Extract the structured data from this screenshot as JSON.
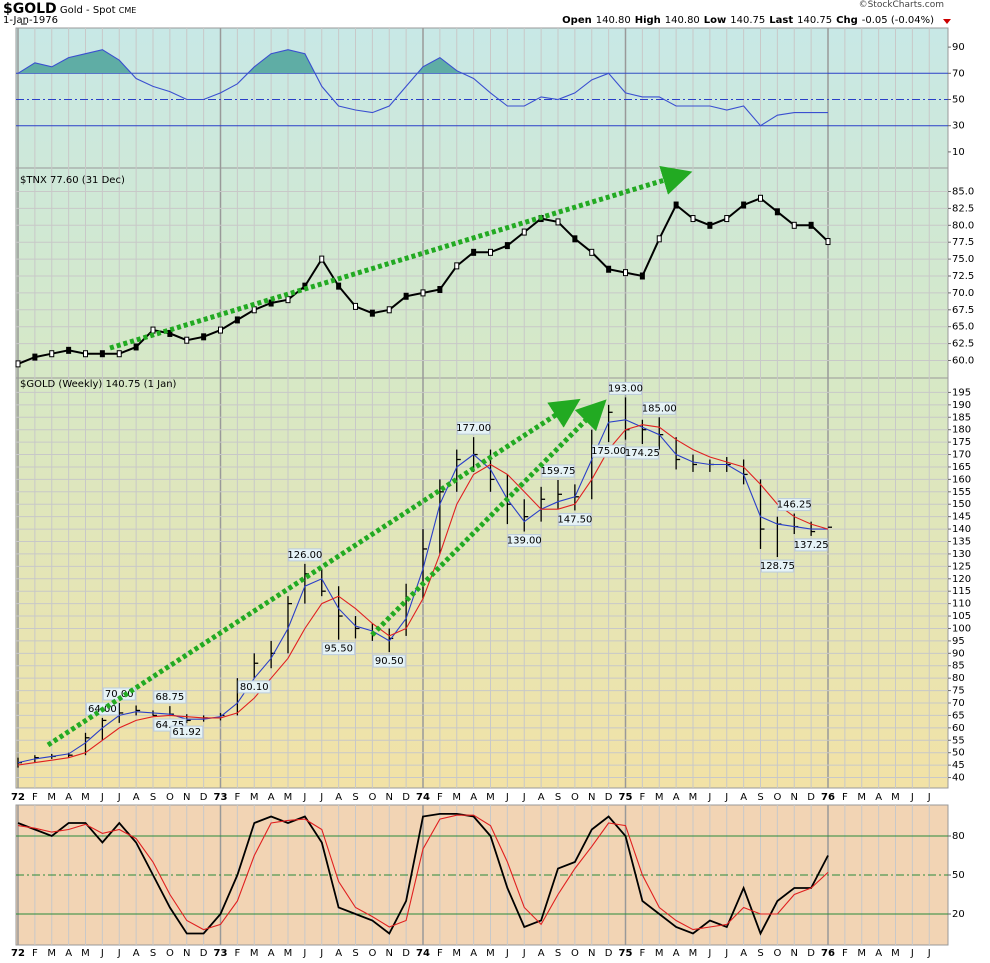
{
  "header": {
    "symbol": "$GOLD",
    "name": "Gold - Spot",
    "exchange": "CME",
    "date": "1-Jan-1976",
    "copyright": "©StockCharts.com",
    "quote": [
      {
        "label": "Open",
        "value": "140.80"
      },
      {
        "label": "High",
        "value": "140.80"
      },
      {
        "label": "Low",
        "value": "140.75"
      },
      {
        "label": "Last",
        "value": "140.75"
      },
      {
        "label": "Chg",
        "value": "-0.05 (-0.04%)"
      }
    ]
  },
  "chart_data": [
    {
      "type": "line",
      "ylim": [
        0,
        100
      ],
      "yticks": [
        10,
        30,
        50,
        70,
        90
      ],
      "reference_lines": [
        70,
        50,
        30
      ],
      "fill_color": "#5fada5",
      "series": [
        {
          "color": "#3a4fd0",
          "values": [
            70,
            78,
            75,
            82,
            85,
            88,
            80,
            66,
            60,
            56,
            50,
            50,
            55,
            62,
            75,
            85,
            88,
            85,
            60,
            45,
            42,
            40,
            45,
            60,
            75,
            82,
            72,
            66,
            55,
            45,
            45,
            52,
            50,
            55,
            65,
            70,
            55,
            52,
            52,
            45,
            45,
            45,
            42,
            45,
            30,
            38,
            40,
            40,
            40,
            null,
            null,
            null,
            null,
            null,
            null
          ]
        }
      ]
    },
    {
      "type": "line",
      "title": "$TNX 77.60 (31 Dec)",
      "ylim": [
        58,
        87
      ],
      "yticks": [
        {
          "value": 60,
          "label": "60.0"
        },
        {
          "value": 62.5,
          "label": "62.5"
        },
        {
          "value": 65,
          "label": "65.0"
        },
        {
          "value": 67.5,
          "label": "67.5"
        },
        {
          "value": 70,
          "label": "70.0"
        },
        {
          "value": 72.5,
          "label": "72.5"
        },
        {
          "value": 75,
          "label": "75.0"
        },
        {
          "value": 77.5,
          "label": "77.5"
        },
        {
          "value": 80,
          "label": "80.0"
        },
        {
          "value": 82.5,
          "label": "82.5"
        },
        {
          "value": 85,
          "label": "85.0"
        }
      ],
      "grid": true,
      "series": [
        {
          "color": "#000000",
          "values": [
            59.5,
            60.5,
            61,
            61.5,
            61,
            61,
            61,
            62,
            64.5,
            64,
            63,
            63.5,
            64.5,
            66,
            67.5,
            68.5,
            69,
            71,
            75,
            71,
            68,
            67,
            67.5,
            69.5,
            70,
            70.5,
            74,
            76,
            76,
            77,
            79,
            81,
            80.5,
            78,
            76,
            73.5,
            73,
            72.5,
            78,
            83,
            81,
            80,
            81,
            83,
            84,
            82,
            80,
            80,
            77.6,
            null,
            null,
            null,
            null,
            null,
            null
          ]
        }
      ]
    },
    {
      "type": "ohlc",
      "title": "$GOLD (Weekly) 140.75 (1 Jan)",
      "ylim": [
        37,
        200
      ],
      "yticks": [
        40,
        45,
        50,
        55,
        60,
        65,
        70,
        75,
        80,
        85,
        90,
        95,
        100,
        105,
        110,
        115,
        120,
        125,
        130,
        135,
        140,
        145,
        150,
        155,
        160,
        165,
        170,
        175,
        180,
        185,
        190,
        195
      ],
      "grid": true,
      "color": "#000000",
      "categories": [
        "72",
        "F",
        "M",
        "A",
        "M",
        "J",
        "J",
        "A",
        "S",
        "O",
        "N",
        "D",
        "73",
        "F",
        "M",
        "A",
        "M",
        "J",
        "J",
        "A",
        "S",
        "O",
        "N",
        "D",
        "74",
        "F",
        "M",
        "A",
        "M",
        "J",
        "J",
        "A",
        "S",
        "O",
        "N",
        "D",
        "75",
        "F",
        "M",
        "A",
        "M",
        "J",
        "J",
        "A",
        "S",
        "O",
        "N",
        "D",
        "76",
        "F",
        "M",
        "A",
        "M",
        "J",
        "J"
      ],
      "high": [
        48,
        49,
        49.5,
        50,
        58,
        64,
        70,
        69,
        67,
        68.75,
        65.5,
        65,
        66,
        80,
        90,
        95,
        113,
        126,
        124,
        117,
        105,
        102,
        100,
        118,
        140,
        160,
        172,
        177,
        172,
        162,
        152,
        157,
        159.75,
        158,
        180,
        190,
        193,
        184,
        185,
        177,
        170,
        168,
        169,
        168,
        160,
        145,
        146.25,
        143,
        140.8,
        null,
        null,
        null,
        null,
        null,
        null
      ],
      "low": [
        44,
        46,
        47.5,
        48,
        49,
        55,
        62,
        65,
        64.9,
        64.75,
        61.92,
        62.5,
        63,
        65,
        80.1,
        84,
        90,
        110,
        113,
        95.5,
        96,
        95,
        90.5,
        97,
        112,
        130,
        155,
        163,
        155,
        142,
        139,
        143,
        148,
        147.5,
        152,
        175,
        176,
        174.25,
        172,
        164,
        163,
        163,
        163,
        158,
        132,
        128.75,
        138,
        137.25,
        140.75,
        null,
        null,
        null,
        null,
        null,
        null
      ],
      "close": [
        46,
        48,
        48.5,
        49,
        56,
        63,
        66,
        67,
        65,
        65.5,
        63,
        64,
        65,
        75,
        86,
        90,
        110,
        122,
        115,
        105,
        100,
        98,
        96,
        112,
        132,
        155,
        168,
        170,
        160,
        150,
        145,
        152,
        154,
        153,
        172,
        187,
        180,
        180,
        178,
        168,
        166,
        166,
        166,
        162,
        140,
        142,
        141,
        139,
        140.75,
        null,
        null,
        null,
        null,
        null,
        null
      ],
      "series": [
        {
          "color": "#2a3fc8",
          "values": [
            46,
            47.5,
            48.5,
            49.5,
            54,
            60,
            65,
            66.5,
            66,
            65.5,
            63.5,
            63.5,
            64.5,
            70,
            80,
            88,
            100,
            117,
            120,
            108,
            101,
            99,
            95,
            104,
            124,
            150,
            165,
            170,
            164,
            152,
            143,
            148,
            151,
            153,
            168,
            183,
            184,
            181,
            178,
            170,
            167,
            166,
            166,
            162,
            145,
            142,
            141,
            140,
            140,
            null,
            null,
            null,
            null,
            null,
            null
          ]
        },
        {
          "color": "#e02020",
          "values": [
            45,
            46,
            47,
            48,
            50,
            55,
            60,
            63,
            64.5,
            65,
            64.5,
            64,
            64,
            66,
            72,
            80,
            88,
            100,
            110,
            113,
            108,
            102,
            97,
            100,
            112,
            130,
            150,
            162,
            166,
            162,
            155,
            148,
            148,
            150,
            160,
            172,
            180,
            182,
            181,
            176,
            172,
            169,
            167,
            165,
            158,
            150,
            145,
            142,
            140,
            null,
            null,
            null,
            null,
            null,
            null
          ]
        }
      ],
      "annotations": [
        {
          "value": 64,
          "label": "64.00"
        },
        {
          "value": 70,
          "label": "70.00"
        },
        {
          "value": 68.75,
          "label": "68.75"
        },
        {
          "value": 64.75,
          "label": "64.75"
        },
        {
          "value": 61.92,
          "label": "61.92"
        },
        {
          "value": 80.1,
          "label": "80.10"
        },
        {
          "value": 126,
          "label": "126.00"
        },
        {
          "value": 95.5,
          "label": "95.50"
        },
        {
          "value": 90.5,
          "label": "90.50"
        },
        {
          "value": 177,
          "label": "177.00"
        },
        {
          "value": 139,
          "label": "139.00"
        },
        {
          "value": 159.75,
          "label": "159.75"
        },
        {
          "value": 147.5,
          "label": "147.50"
        },
        {
          "value": 193,
          "label": "193.00"
        },
        {
          "value": 175,
          "label": "175.00"
        },
        {
          "value": 185,
          "label": "185.00"
        },
        {
          "value": 174.25,
          "label": "174.25"
        },
        {
          "value": 146.25,
          "label": "146.25"
        },
        {
          "value": 128.75,
          "label": "128.75"
        },
        {
          "value": 137.25,
          "label": "137.25"
        }
      ]
    },
    {
      "type": "line",
      "ylim": [
        0,
        100
      ],
      "yticks": [
        20,
        50,
        80
      ],
      "reference_lines": [
        80,
        50,
        20
      ],
      "series": [
        {
          "color": "#000000",
          "values": [
            90,
            85,
            80,
            90,
            90,
            75,
            90,
            75,
            50,
            25,
            5,
            5,
            20,
            50,
            90,
            95,
            90,
            95,
            75,
            25,
            20,
            15,
            5,
            30,
            95,
            97,
            97,
            95,
            80,
            40,
            10,
            15,
            55,
            60,
            85,
            95,
            80,
            30,
            20,
            10,
            5,
            15,
            10,
            40,
            5,
            30,
            40,
            40,
            65,
            null,
            null,
            null,
            null,
            null,
            null
          ]
        },
        {
          "color": "#e02020",
          "values": [
            88,
            86,
            83,
            85,
            89,
            82,
            85,
            78,
            60,
            35,
            15,
            8,
            12,
            30,
            65,
            90,
            92,
            93,
            85,
            45,
            25,
            18,
            10,
            15,
            70,
            93,
            96,
            96,
            88,
            60,
            25,
            12,
            35,
            55,
            72,
            90,
            88,
            50,
            25,
            15,
            8,
            10,
            12,
            25,
            20,
            20,
            35,
            40,
            52,
            null,
            null,
            null,
            null,
            null,
            null
          ]
        }
      ]
    }
  ]
}
